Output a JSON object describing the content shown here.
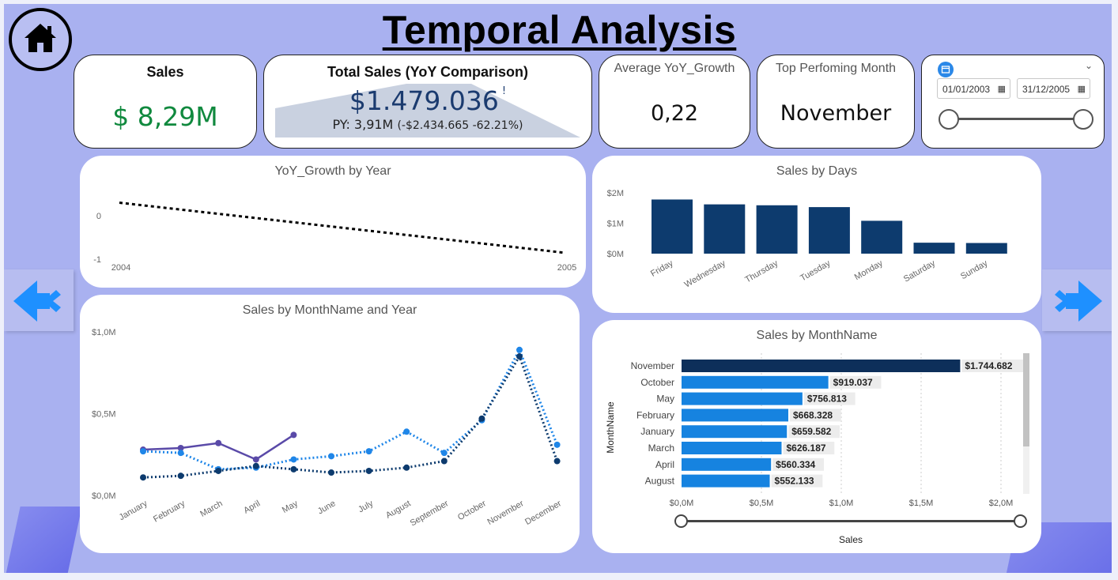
{
  "page": {
    "title": "Temporal Analysis"
  },
  "kpis": {
    "sales": {
      "label": "Sales",
      "value": "$ 8,29M",
      "color": "#10893e"
    },
    "total_sales": {
      "label": "Total Sales (YoY Comparison)",
      "value": "$1.479.036",
      "flag": "!",
      "sub": "PY: 3,91M",
      "change": "(-$2.434.665 -62.21%)",
      "value_color": "#1b3b6f"
    },
    "avg_yoy": {
      "label": "Average YoY_Growth",
      "value": "0,22"
    },
    "top_month": {
      "label": "Top Perfoming Month",
      "value": "November"
    }
  },
  "date_slicer": {
    "start": "01/01/2003",
    "end": "31/12/2005",
    "range": [
      0,
      1
    ]
  },
  "nav": {
    "home": "home-icon",
    "prev": "double-chevron-left-icon",
    "next": "double-chevron-right-icon"
  },
  "chart_data": [
    {
      "type": "line",
      "title": "YoY_Growth by Year",
      "x": [
        "2004",
        "2005"
      ],
      "yticks": [
        "0",
        "-1"
      ],
      "ylim": [
        -1,
        0.5
      ],
      "series": [
        {
          "values": [
            0.3,
            -0.85
          ],
          "style": "dotted",
          "color": "#000000"
        }
      ]
    },
    {
      "type": "bar",
      "title": "Sales by Days",
      "categories": [
        "Friday",
        "Wednesday",
        "Thursday",
        "Tuesday",
        "Monday",
        "Saturday",
        "Sunday"
      ],
      "values": [
        1.78,
        1.62,
        1.59,
        1.53,
        1.08,
        0.36,
        0.35
      ],
      "yticks": [
        "$2M",
        "$1M",
        "$0M"
      ],
      "ylim": [
        0,
        2
      ],
      "color": "#0d3b6e"
    },
    {
      "type": "line",
      "title": "Sales by MonthName and Year",
      "categories": [
        "January",
        "February",
        "March",
        "April",
        "May",
        "June",
        "July",
        "August",
        "September",
        "October",
        "November",
        "December"
      ],
      "yticks": [
        "$1,0M",
        "$0,5M",
        "$0,0M"
      ],
      "ylim": [
        0,
        1.0
      ],
      "series": [
        {
          "style": "solid",
          "color": "#5a4aa8",
          "values": [
            0.28,
            0.29,
            0.32,
            0.22,
            0.37,
            null,
            null,
            null,
            null,
            null,
            null,
            null
          ]
        },
        {
          "style": "dotted",
          "color": "#1f86e8",
          "values": [
            0.27,
            0.26,
            0.16,
            0.17,
            0.22,
            0.24,
            0.27,
            0.39,
            0.26,
            0.46,
            0.89,
            0.31
          ]
        },
        {
          "style": "dotted",
          "color": "#0d3b6e",
          "values": [
            0.11,
            0.12,
            0.15,
            0.18,
            0.16,
            0.14,
            0.15,
            0.17,
            0.21,
            0.47,
            0.85,
            0.21
          ]
        }
      ]
    },
    {
      "type": "bar",
      "orientation": "horizontal",
      "title": "Sales by MonthName",
      "ylabel": "MonthName",
      "xlabel": "Sales",
      "categories": [
        "November",
        "October",
        "May",
        "February",
        "January",
        "March",
        "April",
        "August"
      ],
      "values": [
        1744682,
        919037,
        756813,
        668328,
        659582,
        626187,
        560334,
        552133
      ],
      "labels": [
        "$1.744.682",
        "$919.037",
        "$756.813",
        "$668.328",
        "$659.582",
        "$626.187",
        "$560.334",
        "$552.133"
      ],
      "xticks": [
        "$0,0M",
        "$0,5M",
        "$1,0M",
        "$1,5M",
        "$2,0M"
      ],
      "xlim": [
        0,
        2000000
      ],
      "colors": {
        "top": "#0d2f5a",
        "rest": "#1683e0"
      }
    }
  ]
}
